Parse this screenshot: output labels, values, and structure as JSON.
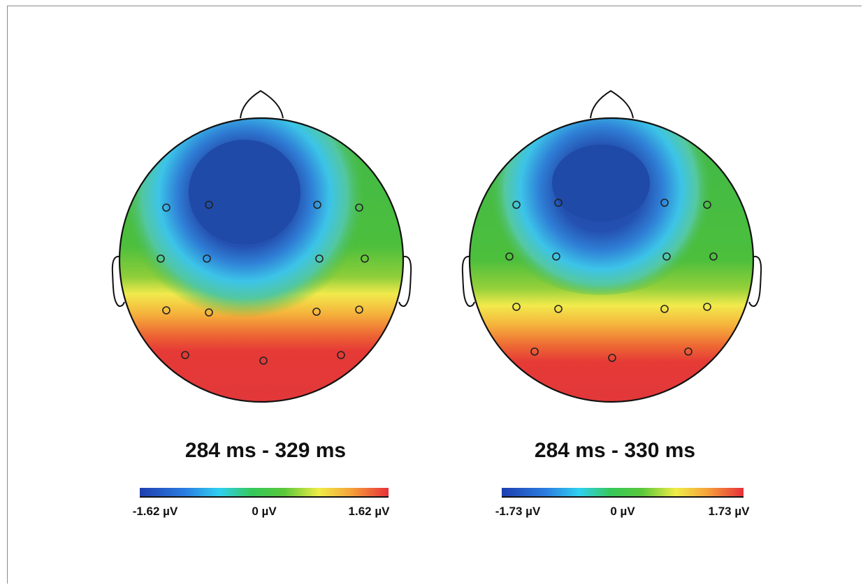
{
  "figure": {
    "panels": [
      {
        "title": "284 ms - 329 ms",
        "colorbar": {
          "min_label": "-1.62 µV",
          "mid_label": "0 µV",
          "max_label": "1.62 µV",
          "min": -1.62,
          "max": 1.62
        }
      },
      {
        "title": "284 ms - 330 ms",
        "colorbar": {
          "min_label": "-1.73 µV",
          "mid_label": "0 µV",
          "max_label": "1.73 µV",
          "min": -1.73,
          "max": 1.73
        }
      }
    ],
    "colormap": [
      "#1e40a8",
      "#2f6fd0",
      "#3bbfe8",
      "#3cc24a",
      "#6ec33a",
      "#f2e84a",
      "#f4a43a",
      "#e53a36"
    ],
    "electrode_count": 15
  }
}
